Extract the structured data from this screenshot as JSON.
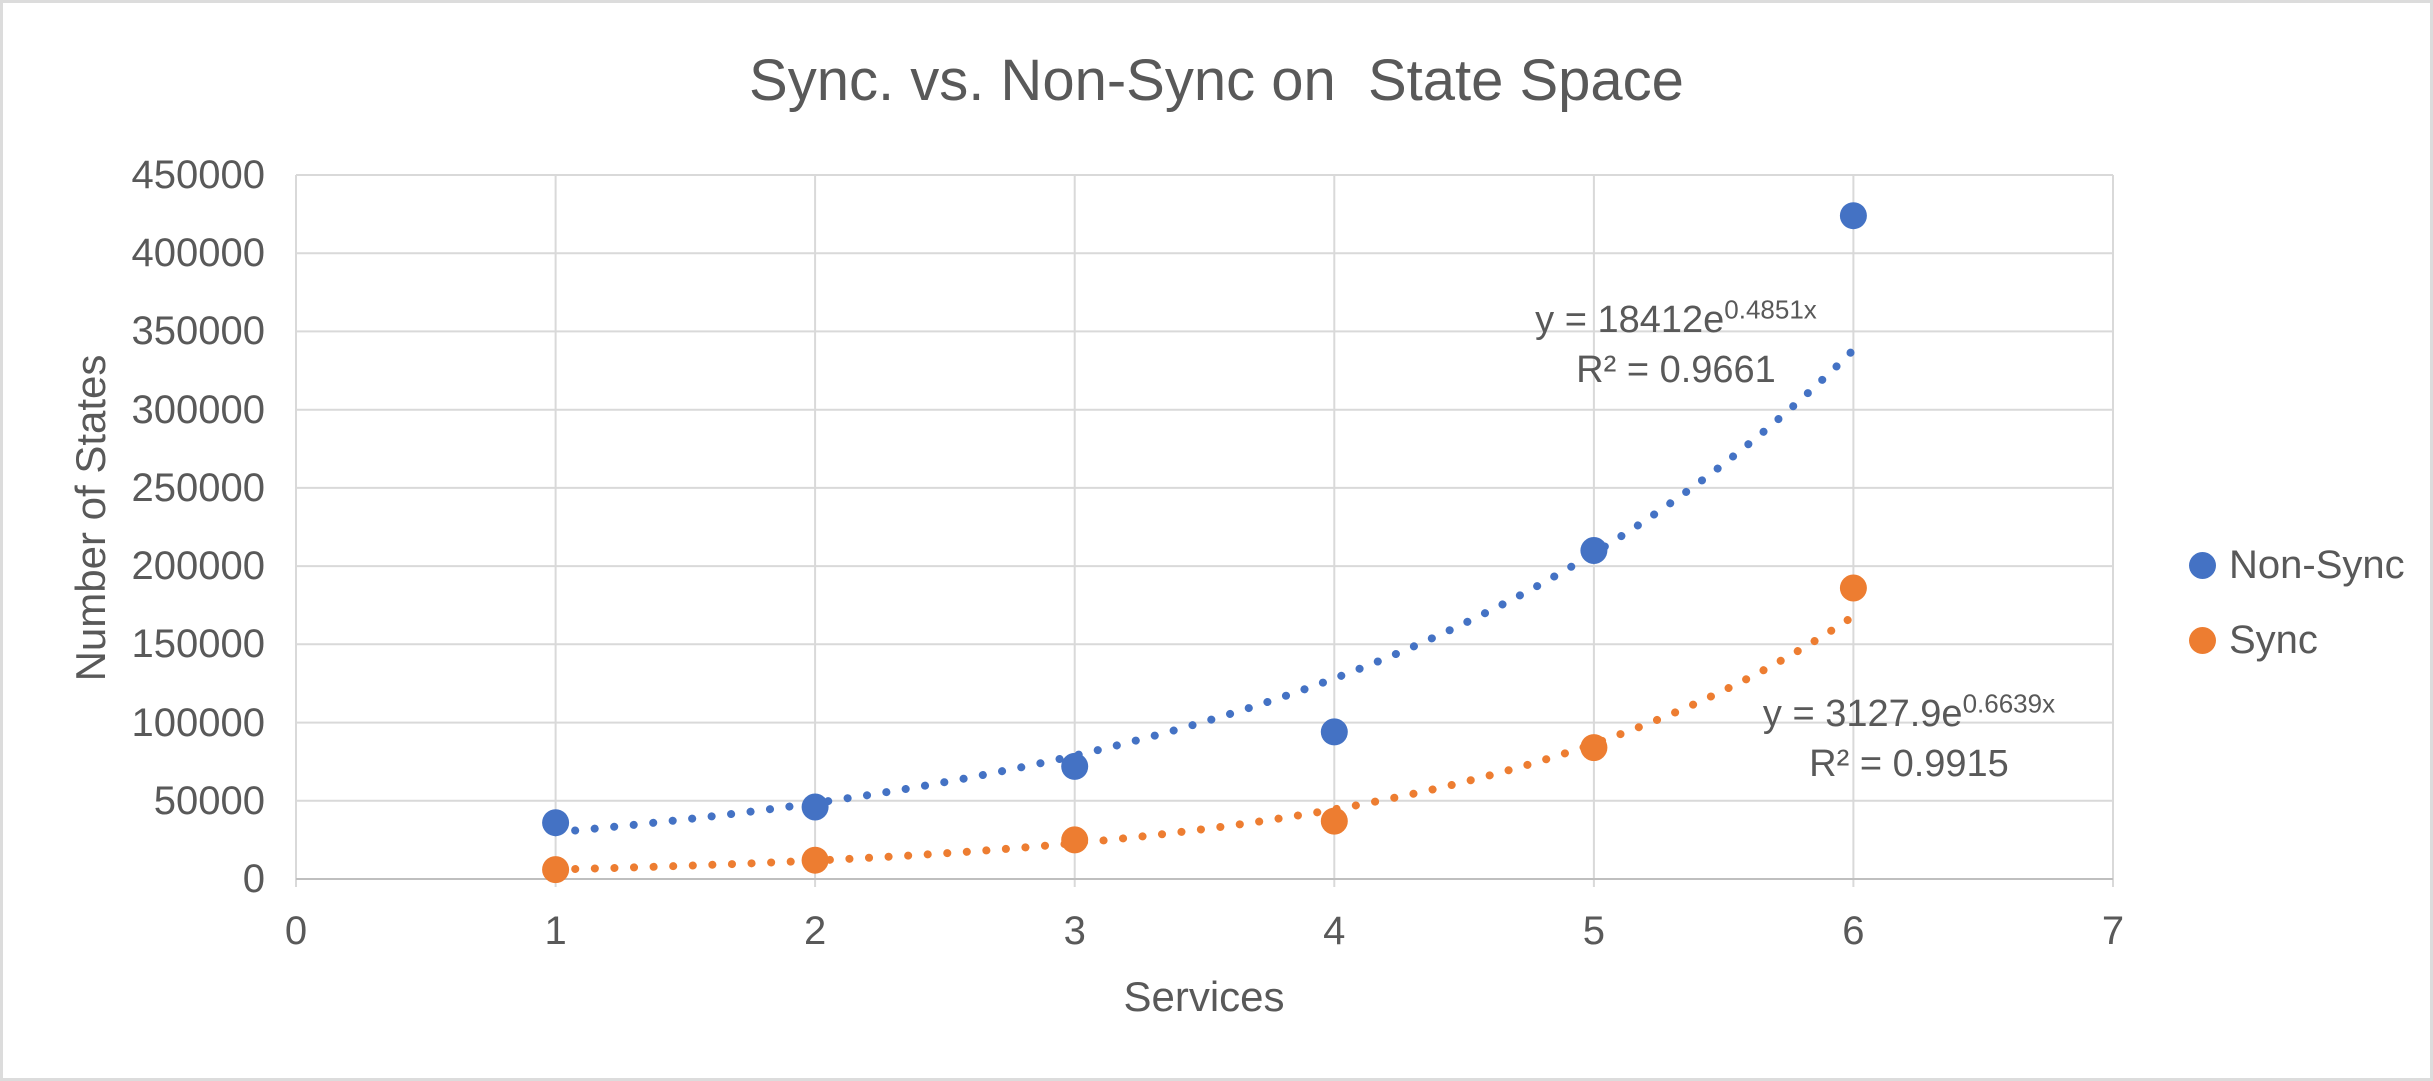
{
  "window": {
    "background": "#FFFFFF",
    "frame_border_color": "#DCDCDC"
  },
  "chart_data": {
    "type": "scatter",
    "title": "Sync. vs. Non-Sync on  State Space",
    "xlabel": "Services",
    "ylabel": "Number of States",
    "xlim": [
      0,
      7
    ],
    "ylim": [
      0,
      450000
    ],
    "x_ticks": [
      0,
      1,
      2,
      3,
      4,
      5,
      6,
      7
    ],
    "y_ticks": [
      0,
      50000,
      100000,
      150000,
      200000,
      250000,
      300000,
      350000,
      400000,
      450000
    ],
    "grid": true,
    "legend_position": "right",
    "x": [
      1,
      2,
      3,
      4,
      5,
      6
    ],
    "series": [
      {
        "name": "Non-Sync",
        "color": "#4472C4",
        "values": [
          36000,
          46000,
          72000,
          94000,
          210000,
          424000
        ],
        "trendline": {
          "type": "exponential",
          "style": "dotted",
          "a": 18412,
          "b": 0.4851,
          "x_start": 1,
          "x_end": 6,
          "equation_base": "y = 18412e",
          "equation_exponent": "0.4851x",
          "r_squared": "R² = 0.9661"
        }
      },
      {
        "name": "Sync",
        "color": "#ED7D31",
        "values": [
          6000,
          12000,
          25000,
          37000,
          84000,
          186000
        ],
        "trendline": {
          "type": "exponential",
          "style": "dotted",
          "a": 3127.9,
          "b": 0.6639,
          "x_start": 1,
          "x_end": 6,
          "equation_base": "y = 3127.9e",
          "equation_exponent": "0.6639x",
          "r_squared": "R² = 0.9915"
        }
      }
    ],
    "colors": {
      "text": "#595959",
      "gridline": "#D9D9D9",
      "axis_line": "#BFBFBF",
      "plot_background": "#FFFFFF"
    }
  }
}
